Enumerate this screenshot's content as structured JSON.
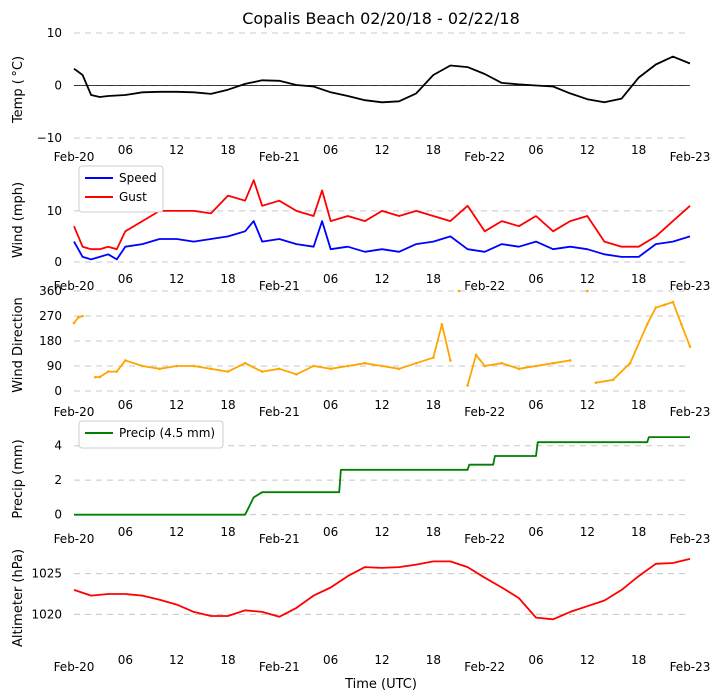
{
  "chart_data": {
    "type": "line",
    "title": "Copalis Beach 02/20/18 - 02/22/18",
    "xlabel": "Time (UTC)",
    "x_ticks": [
      "Feb-20",
      "06",
      "12",
      "18",
      "Feb-21",
      "06",
      "12",
      "18",
      "Feb-22",
      "06",
      "12",
      "18",
      "Feb-23"
    ],
    "x_range_hours": [
      0,
      72
    ],
    "panels": [
      {
        "id": "temp",
        "ylabel": "Temp ($^\\circ$C)",
        "ylabel_display": "Temp ( °C)",
        "ylim": [
          -10,
          10
        ],
        "yticks": [
          "10",
          "0",
          "−10"
        ],
        "ytick_values": [
          10,
          0,
          -10
        ],
        "zero_line": true,
        "series": [
          {
            "name": "Temp",
            "color": "#000000",
            "x": [
              0,
              1,
              2,
              3,
              4,
              6,
              8,
              10,
              12,
              14,
              16,
              18,
              20,
              22,
              24,
              26,
              28,
              30,
              32,
              34,
              36,
              38,
              40,
              42,
              44,
              46,
              48,
              50,
              52,
              54,
              56,
              58,
              60,
              62,
              64,
              66,
              68,
              70,
              72
            ],
            "y": [
              3.2,
              2.0,
              -1.8,
              -2.2,
              -2.0,
              -1.8,
              -1.3,
              -1.2,
              -1.2,
              -1.3,
              -1.6,
              -0.8,
              0.3,
              1.0,
              0.9,
              0.1,
              -0.2,
              -1.3,
              -2.0,
              -2.8,
              -3.2,
              -3.0,
              -1.5,
              2.0,
              3.8,
              3.5,
              2.2,
              0.5,
              0.2,
              0.0,
              -0.2,
              -1.5,
              -2.6,
              -3.2,
              -2.5,
              1.5,
              4.0,
              5.5,
              4.2
            ]
          }
        ]
      },
      {
        "id": "wind",
        "ylabel": "Wind (mph)",
        "ylim": [
          0,
          18
        ],
        "yticks": [
          "10",
          "0"
        ],
        "ytick_values": [
          10,
          0
        ],
        "legend": {
          "position": "top-left",
          "entries": [
            "Speed",
            "Gust"
          ]
        },
        "series": [
          {
            "name": "Speed",
            "color": "#0000ff",
            "x": [
              0,
              1,
              2,
              3,
              4,
              5,
              6,
              8,
              10,
              12,
              14,
              16,
              18,
              20,
              21,
              22,
              24,
              26,
              28,
              29,
              30,
              32,
              34,
              36,
              38,
              40,
              42,
              44,
              46,
              48,
              50,
              52,
              54,
              56,
              58,
              60,
              62,
              64,
              66,
              68,
              70,
              72
            ],
            "y": [
              4,
              1,
              0.5,
              1,
              1.5,
              0.5,
              3,
              3.5,
              4.5,
              4.5,
              4,
              4.5,
              5,
              6,
              8,
              4,
              4.5,
              3.5,
              3,
              8,
              2.5,
              3,
              2,
              2.5,
              2,
              3.5,
              4,
              5,
              2.5,
              2,
              3.5,
              3,
              4,
              2.5,
              3,
              2.5,
              1.5,
              1,
              1,
              3.5,
              4,
              5
            ]
          },
          {
            "name": "Gust",
            "color": "#ff0000",
            "x": [
              0,
              1,
              2,
              3,
              4,
              5,
              6,
              8,
              10,
              12,
              14,
              16,
              18,
              20,
              21,
              22,
              24,
              26,
              28,
              29,
              30,
              32,
              34,
              36,
              38,
              40,
              42,
              44,
              46,
              48,
              50,
              52,
              54,
              56,
              58,
              60,
              62,
              64,
              66,
              68,
              70,
              72
            ],
            "y": [
              7,
              3,
              2.5,
              2.5,
              3,
              2.5,
              6,
              8,
              10,
              10,
              10,
              9.5,
              13,
              12,
              16,
              11,
              12,
              10,
              9,
              14,
              8,
              9,
              8,
              10,
              9,
              10,
              9,
              8,
              11,
              6,
              8,
              7,
              9,
              6,
              8,
              9,
              4,
              3,
              3,
              5,
              8,
              11
            ]
          }
        ]
      },
      {
        "id": "dir",
        "ylabel": "Wind Direction",
        "ylim": [
          0,
          360
        ],
        "yticks": [
          "360",
          "270",
          "180",
          "90",
          "0"
        ],
        "ytick_values": [
          360,
          270,
          180,
          90,
          0
        ],
        "series": [
          {
            "name": "Direction",
            "color": "#ffa500",
            "x": [
              0,
              0.5,
              1,
              2.5,
              3,
              4,
              5,
              6,
              8,
              10,
              12,
              14,
              16,
              18,
              20,
              22,
              24,
              26,
              28,
              30,
              32,
              34,
              36,
              38,
              40,
              42,
              43,
              44,
              45,
              46,
              47,
              48,
              50,
              52,
              54,
              56,
              58,
              60,
              61,
              63,
              65,
              67,
              68,
              69,
              70,
              71,
              72
            ],
            "y": [
              245,
              265,
              270,
              50,
              50,
              70,
              70,
              110,
              90,
              80,
              90,
              90,
              80,
              70,
              100,
              70,
              80,
              60,
              90,
              80,
              90,
              100,
              90,
              80,
              100,
              120,
              240,
              110,
              360,
              20,
              130,
              90,
              100,
              80,
              90,
              100,
              110,
              360,
              30,
              40,
              100,
              240,
              300,
              310,
              320,
              240,
              160
            ]
          }
        ]
      },
      {
        "id": "precip",
        "ylabel": "Precip (mm)",
        "ylim": [
          -0.6,
          5.2
        ],
        "yticks": [
          "4",
          "2",
          "0"
        ],
        "ytick_values": [
          4,
          2,
          0
        ],
        "legend": {
          "position": "top-left",
          "entries": [
            "Precip (4.5 mm)"
          ]
        },
        "series": [
          {
            "name": "Precip (4.5 mm)",
            "color": "#008000",
            "x": [
              0,
              20,
              21,
              22,
              31,
              31.2,
              46,
              46.2,
              49,
              49.2,
              54,
              54.2,
              67,
              67.2,
              72
            ],
            "y": [
              0,
              0,
              1,
              1.3,
              1.3,
              2.6,
              2.6,
              2.9,
              2.9,
              3.4,
              3.4,
              4.2,
              4.2,
              4.5,
              4.5
            ]
          }
        ]
      },
      {
        "id": "alt",
        "ylabel": "Altimeter (hPa)",
        "ylim": [
          1016,
          1029
        ],
        "yticks": [
          "1025",
          "1020"
        ],
        "ytick_values": [
          1025,
          1020
        ],
        "series": [
          {
            "name": "Altimeter",
            "color": "#ff0000",
            "x": [
              0,
              2,
              4,
              6,
              8,
              10,
              12,
              14,
              16,
              18,
              20,
              22,
              24,
              26,
              28,
              30,
              32,
              34,
              36,
              38,
              40,
              42,
              44,
              46,
              48,
              50,
              52,
              54,
              56,
              58,
              60,
              62,
              64,
              66,
              68,
              70,
              72
            ],
            "y": [
              1023,
              1022.3,
              1022.5,
              1022.5,
              1022.3,
              1021.8,
              1021.2,
              1020.3,
              1019.8,
              1019.8,
              1020.5,
              1020.3,
              1019.7,
              1020.8,
              1022.3,
              1023.3,
              1024.7,
              1025.8,
              1025.7,
              1025.8,
              1026.1,
              1026.5,
              1026.5,
              1025.8,
              1024.5,
              1023.3,
              1022,
              1019.6,
              1019.4,
              1020.3,
              1021,
              1021.7,
              1023,
              1024.7,
              1026.2,
              1026.3,
              1026.8
            ]
          }
        ]
      }
    ]
  }
}
